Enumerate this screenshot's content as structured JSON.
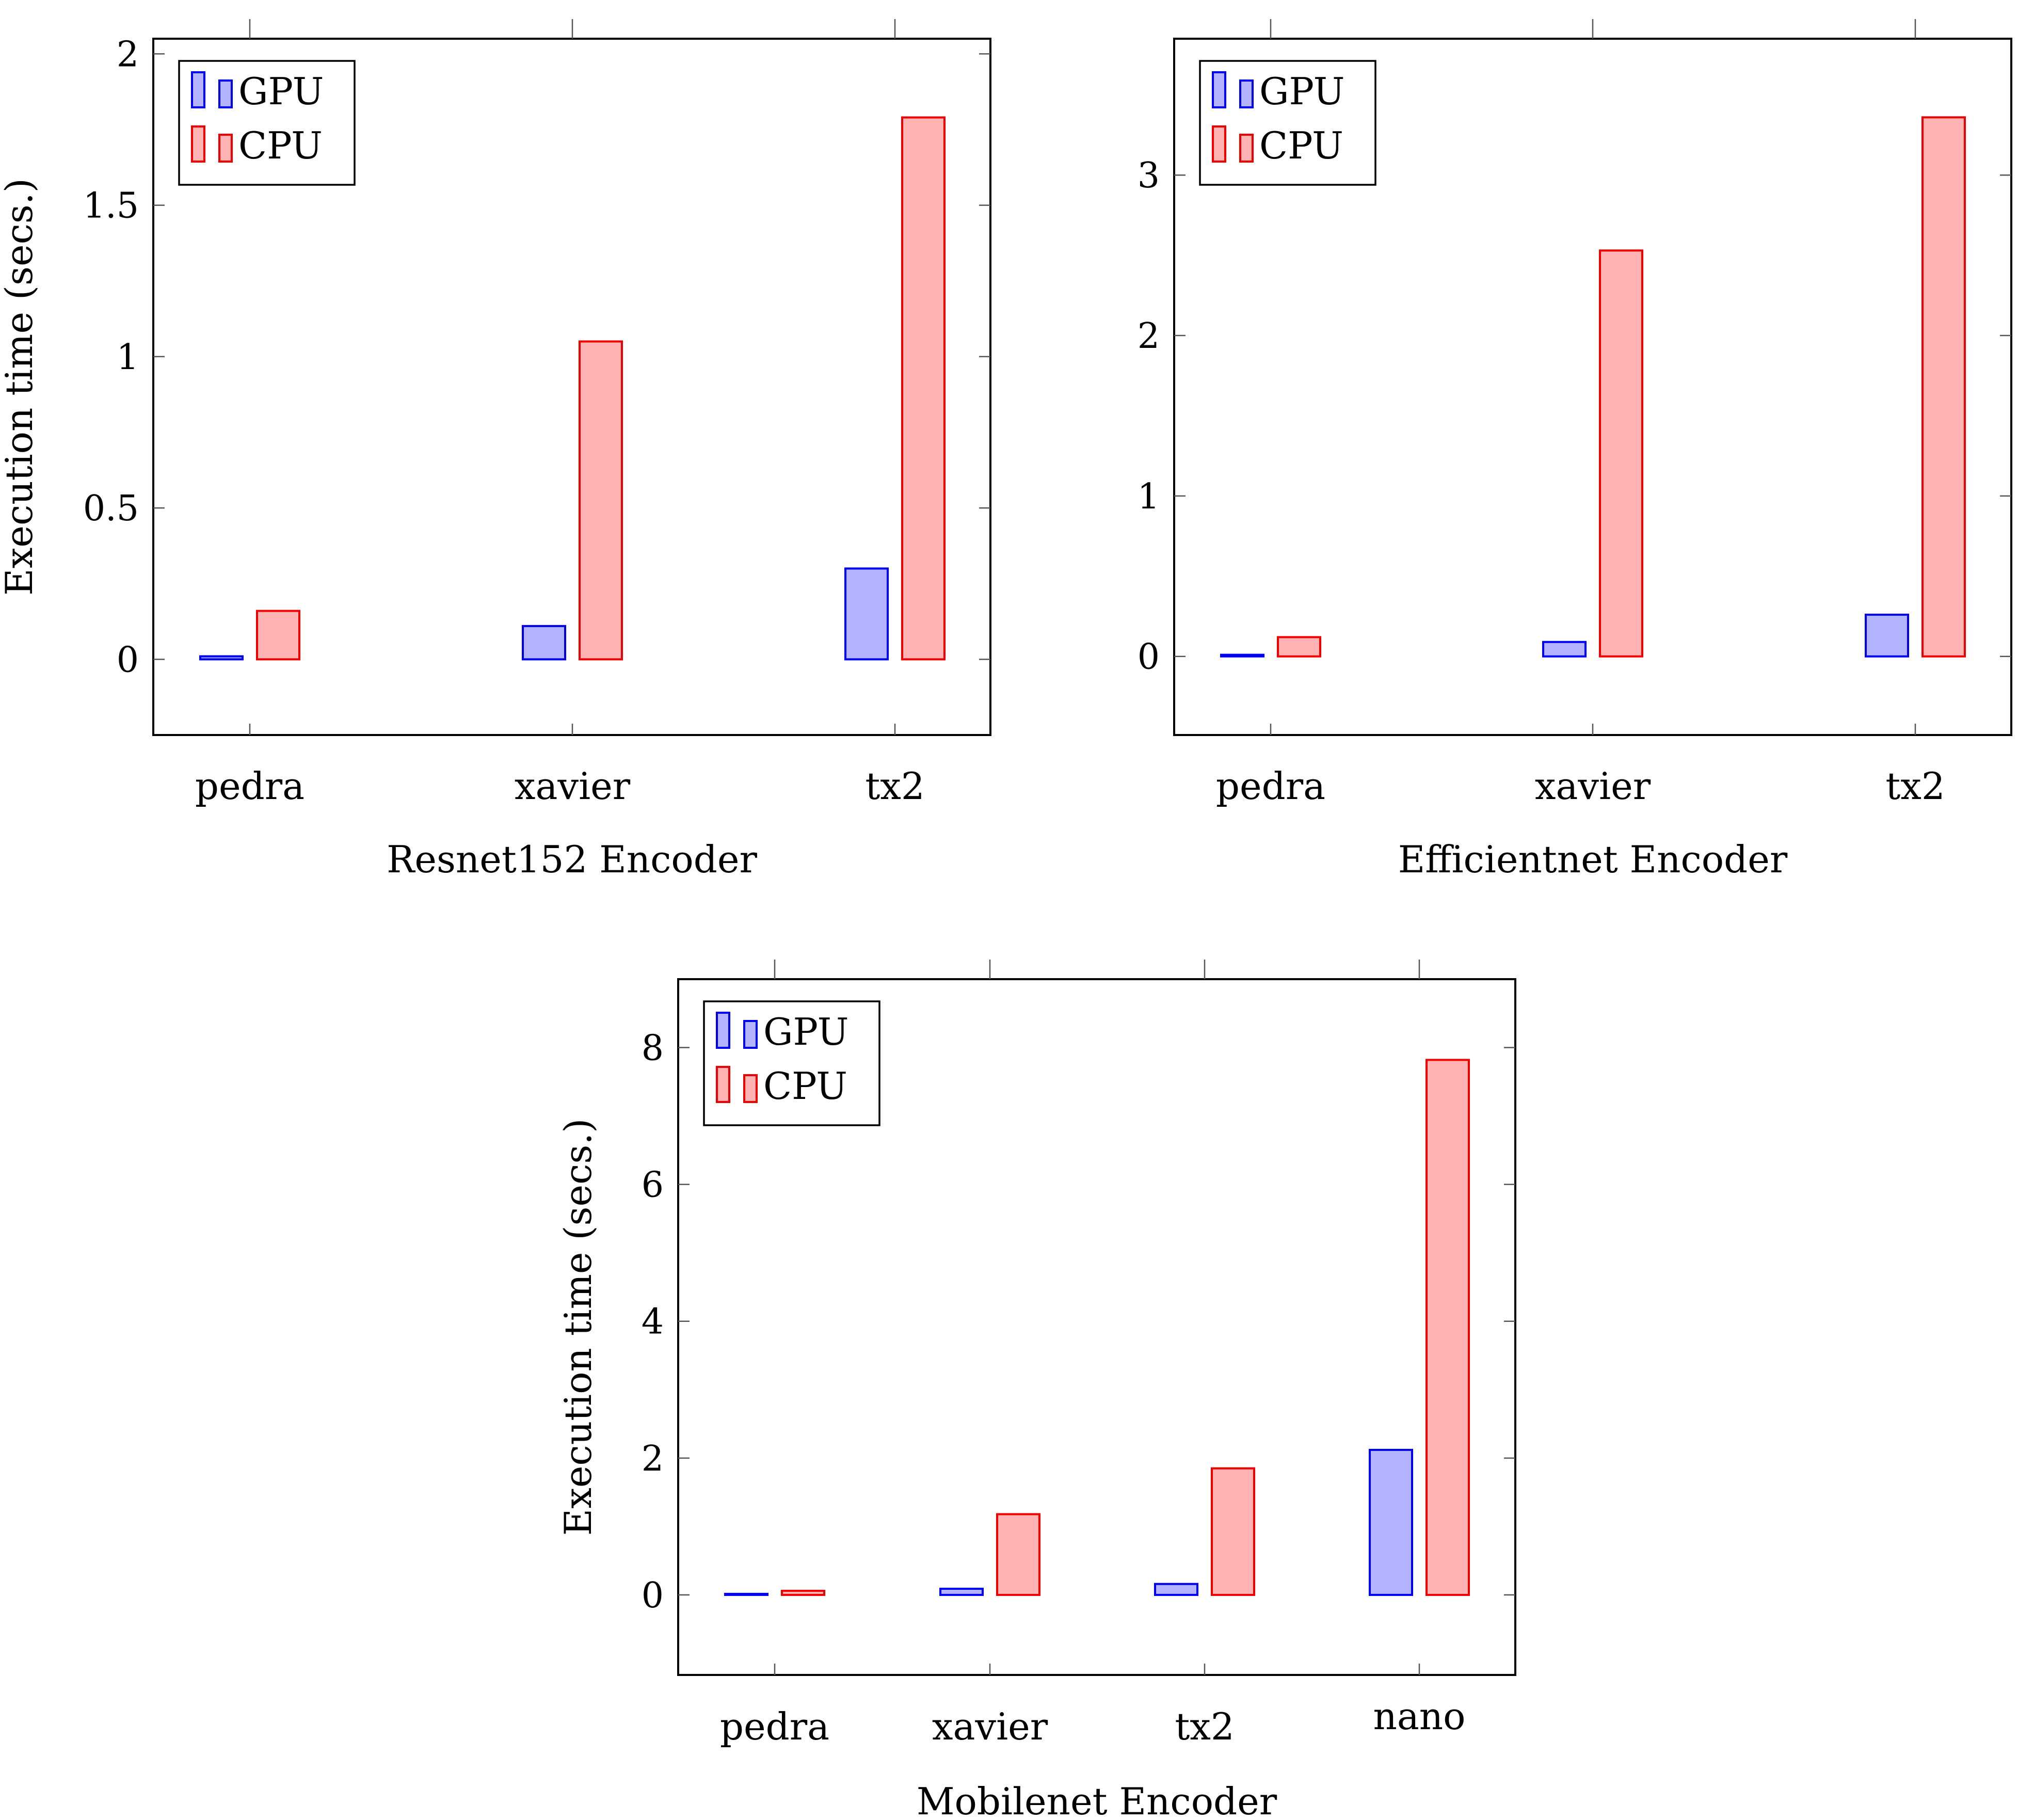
{
  "colors": {
    "gpu_fill": "#b3b3ff",
    "gpu_stroke": "#0000ee",
    "cpu_fill": "#ffb3b3",
    "cpu_stroke": "#ee0000"
  },
  "chart_data": [
    {
      "type": "bar",
      "title": "",
      "xlabel": "Resnet152 Encoder",
      "ylabel": "Execution time (secs.)",
      "categories": [
        "pedra",
        "xavier",
        "tx2"
      ],
      "ylim": [
        -0.25,
        2.05
      ],
      "yticks": [
        0,
        0.5,
        1,
        1.5,
        2
      ],
      "ytick_labels": [
        "0",
        "0.5",
        "1",
        "1.5",
        "2"
      ],
      "legend_position": "top-left",
      "series": [
        {
          "name": "GPU",
          "values": [
            0.01,
            0.11,
            0.3
          ]
        },
        {
          "name": "CPU",
          "values": [
            0.16,
            1.05,
            1.79
          ]
        }
      ]
    },
    {
      "type": "bar",
      "title": "",
      "xlabel": "Efficientnet Encoder",
      "ylabel": "",
      "categories": [
        "pedra",
        "xavier",
        "tx2"
      ],
      "ylim": [
        -0.49,
        3.85
      ],
      "yticks": [
        0,
        1,
        2,
        3
      ],
      "ytick_labels": [
        "0",
        "1",
        "2",
        "3"
      ],
      "legend_position": "top-left",
      "series": [
        {
          "name": "GPU",
          "values": [
            0.01,
            0.09,
            0.26
          ]
        },
        {
          "name": "CPU",
          "values": [
            0.12,
            2.53,
            3.36
          ]
        }
      ]
    },
    {
      "type": "bar",
      "title": "",
      "xlabel": "Mobilenet Encoder",
      "ylabel": "Execution time (secs.)",
      "categories": [
        "pedra",
        "xavier",
        "tx2",
        "nano"
      ],
      "ylim": [
        -1.17,
        9.0
      ],
      "yticks": [
        0,
        2,
        4,
        6,
        8
      ],
      "ytick_labels": [
        "0",
        "2",
        "4",
        "6",
        "8"
      ],
      "legend_position": "top-left",
      "series": [
        {
          "name": "GPU",
          "values": [
            0.01,
            0.09,
            0.16,
            2.12
          ]
        },
        {
          "name": "CPU",
          "values": [
            0.06,
            1.18,
            1.85,
            7.82
          ]
        }
      ]
    }
  ]
}
